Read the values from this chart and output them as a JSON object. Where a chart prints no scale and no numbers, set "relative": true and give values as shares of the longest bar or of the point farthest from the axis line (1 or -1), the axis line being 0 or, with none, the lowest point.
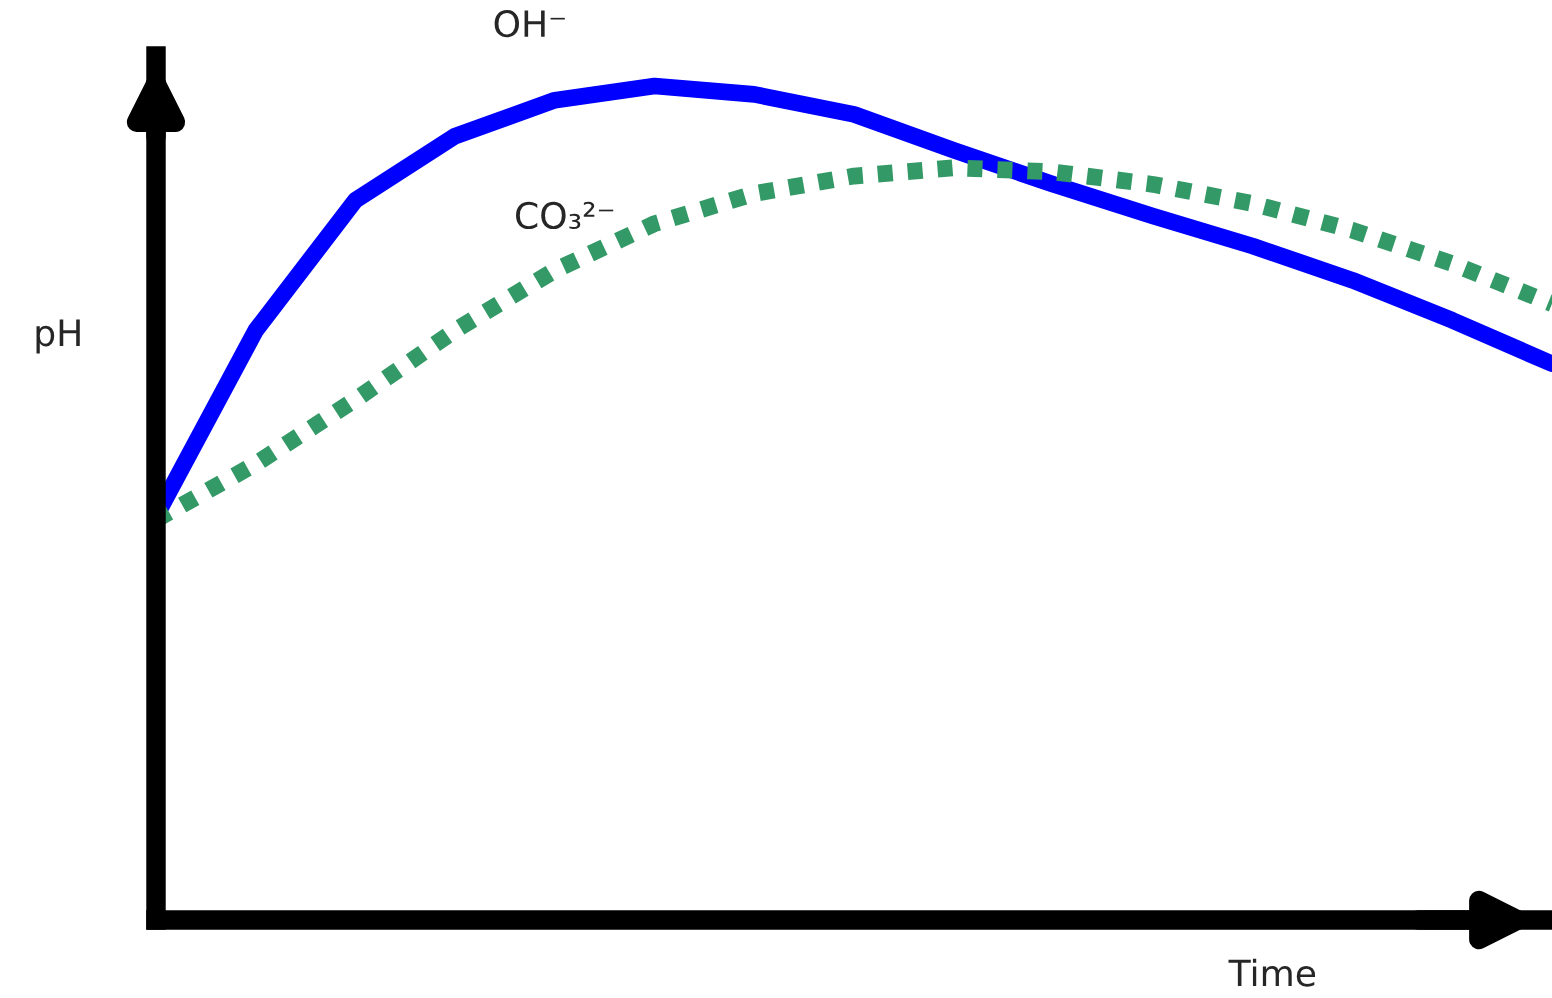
{
  "chart_data": {
    "type": "line",
    "relative": true,
    "xlabel": "Time",
    "ylabel": "pH",
    "grid": false,
    "legend": false,
    "categories": [
      null,
      null,
      null,
      null,
      null,
      null,
      null,
      null,
      null,
      null,
      null,
      null,
      null,
      null,
      null
    ],
    "series": [
      {
        "name": "OH⁻",
        "color": "#0000ff",
        "line_style": "solid",
        "values": [
          0.484,
          0.707,
          0.863,
          0.94,
          0.983,
          1.0,
          0.99,
          0.966,
          0.923,
          0.882,
          0.844,
          0.808,
          0.767,
          0.719,
          0.667
        ]
      },
      {
        "name": "CO₃²⁻",
        "color": "#339966",
        "line_style": "dotted",
        "values": [
          0.48,
          0.547,
          0.624,
          0.707,
          0.779,
          0.835,
          0.871,
          0.892,
          0.902,
          0.897,
          0.882,
          0.859,
          0.827,
          0.787,
          0.739
        ]
      }
    ]
  }
}
